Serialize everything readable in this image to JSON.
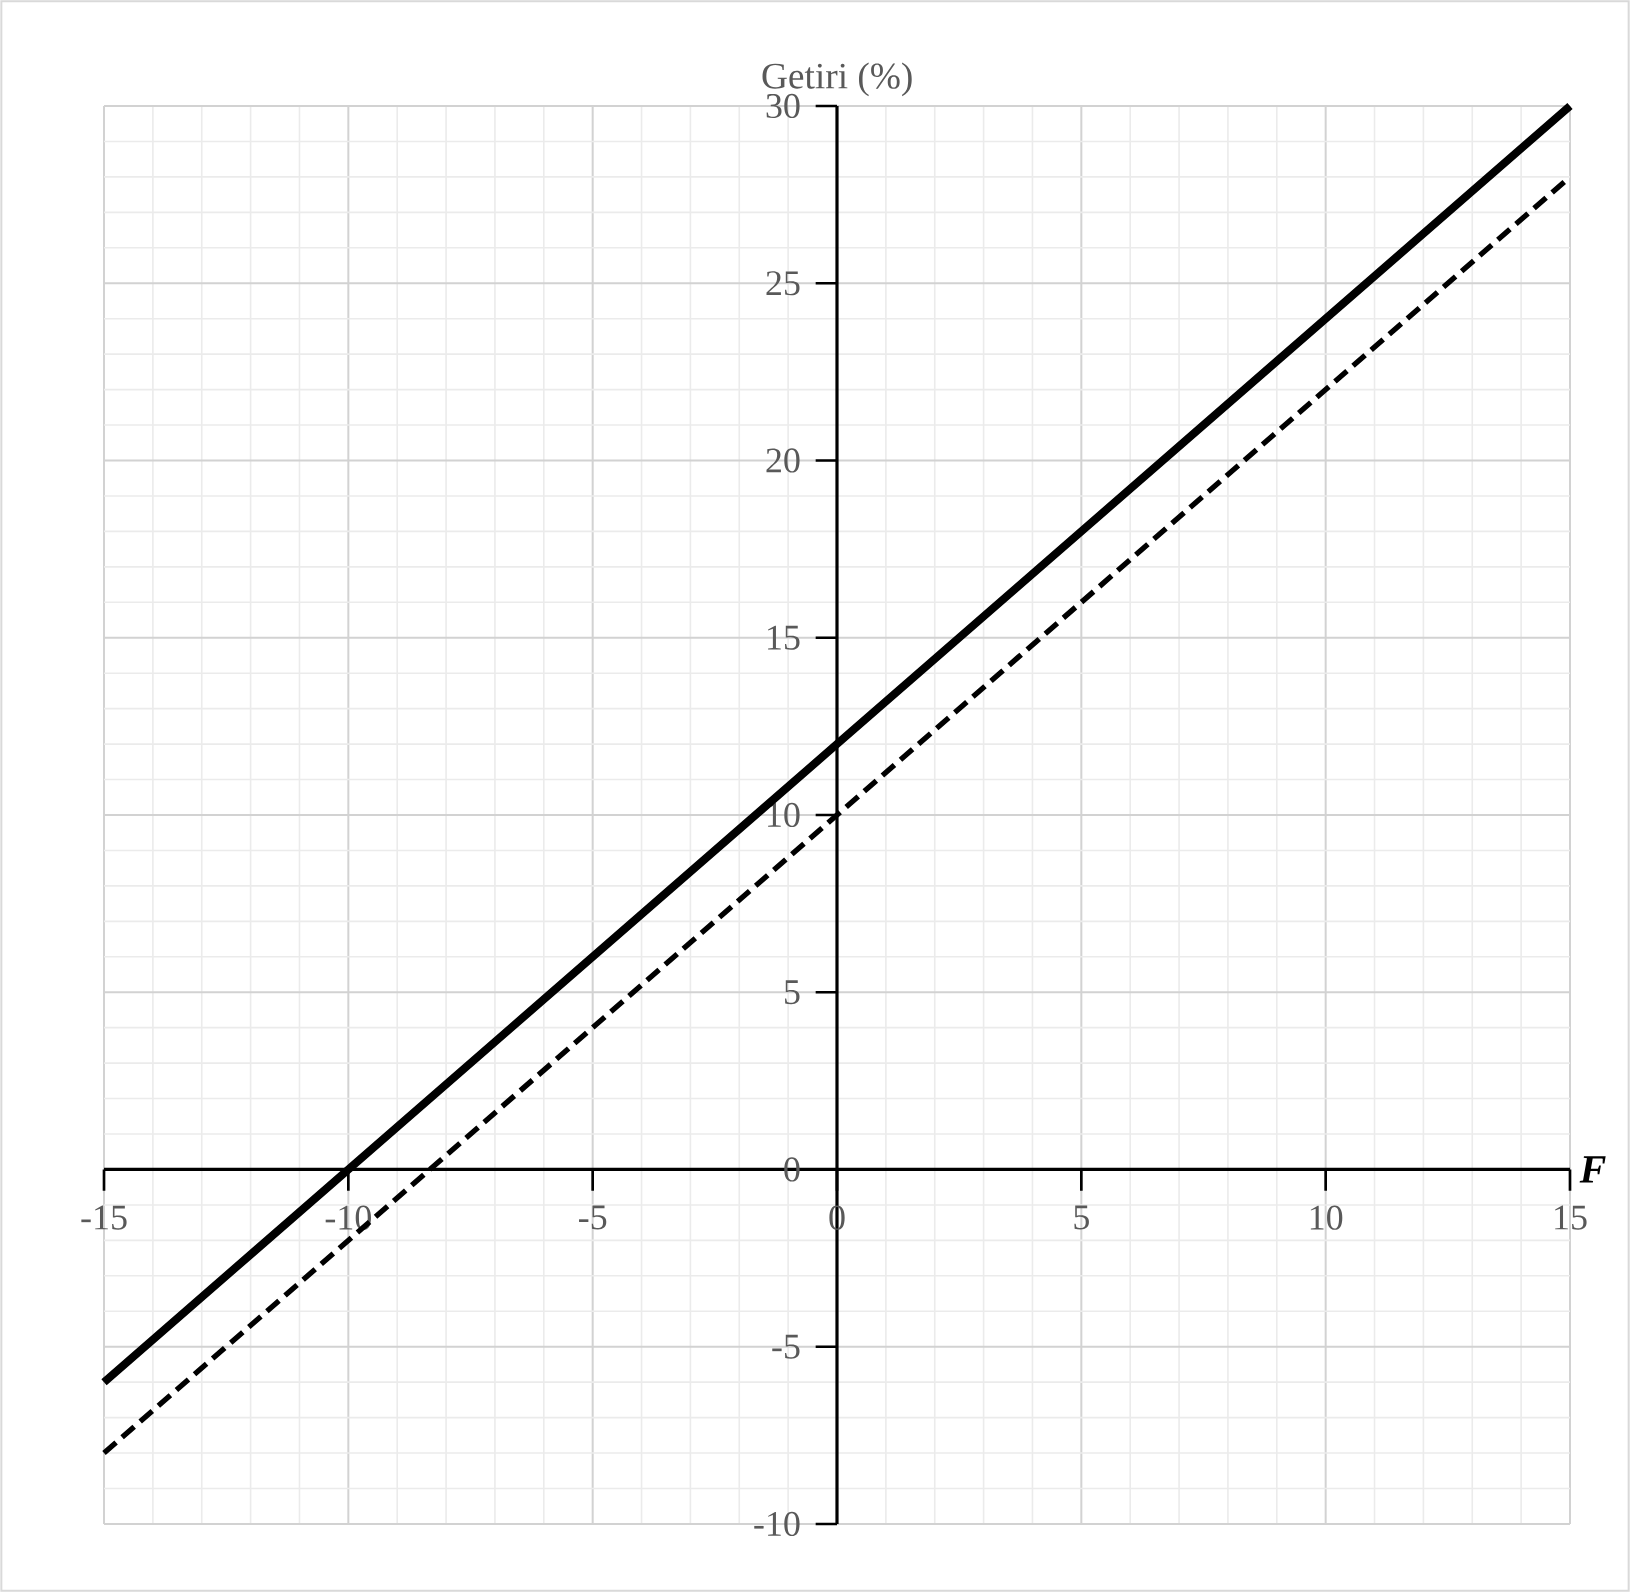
{
  "chart_data": {
    "type": "line",
    "xlabel": "F",
    "ylabel": "Getiri (%)",
    "xlim": [
      -15,
      15
    ],
    "ylim": [
      -10,
      30
    ],
    "xticks": [
      -15,
      -10,
      -5,
      0,
      5,
      10,
      15
    ],
    "yticks": [
      -10,
      -5,
      0,
      5,
      10,
      15,
      20,
      25,
      30
    ],
    "grid": true,
    "series": [
      {
        "color": "#000000",
        "line_style": "solid",
        "x": [
          -15,
          0,
          15
        ],
        "values": [
          -6,
          12,
          30
        ]
      },
      {
        "color": "#000000",
        "line_style": "dashed",
        "x": [
          -15,
          0,
          15
        ],
        "values": [
          -8,
          10,
          28
        ]
      }
    ]
  }
}
